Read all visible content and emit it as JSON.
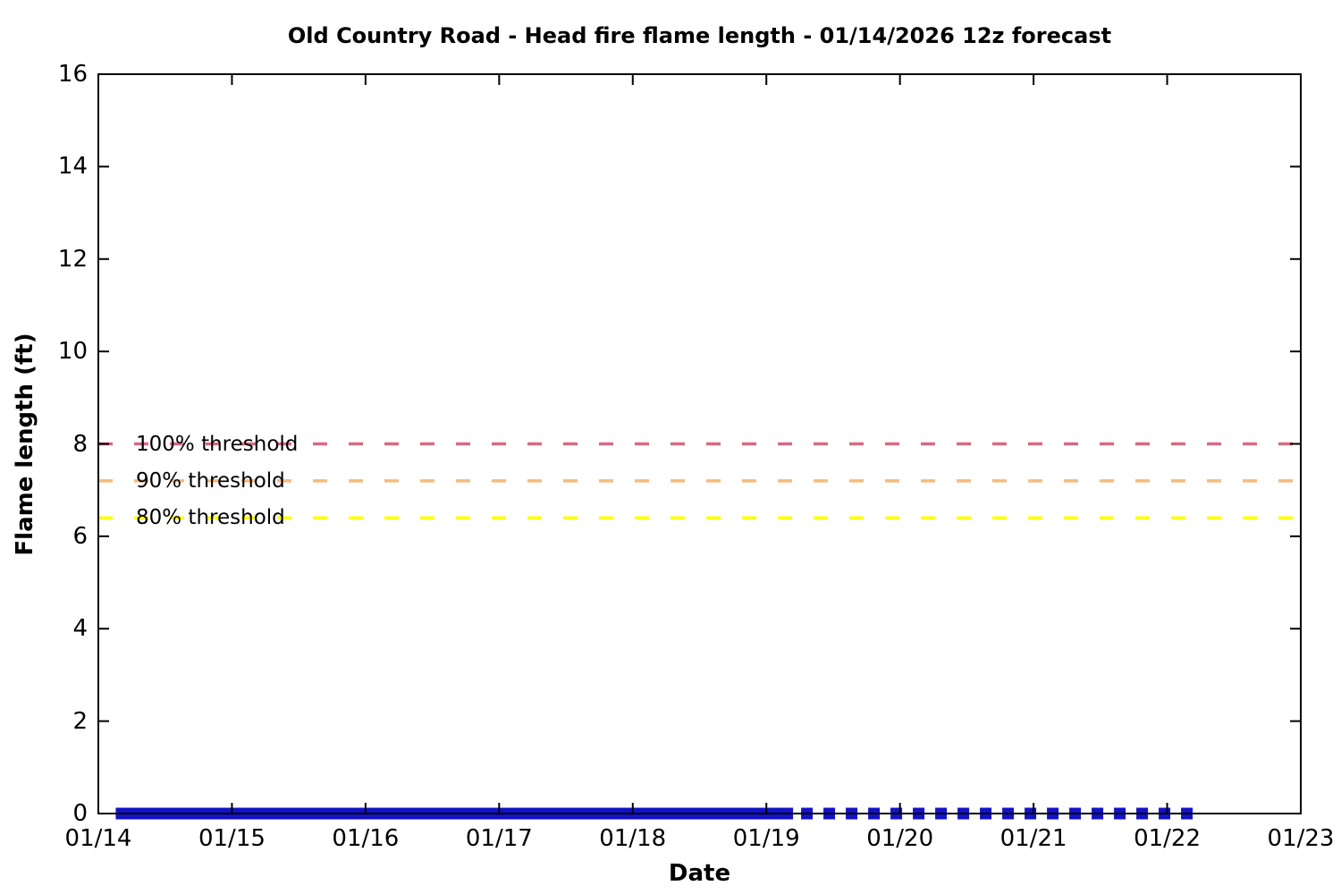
{
  "page": {
    "background_color": "#ffffff",
    "axis_color": "#000000",
    "text_color": "#000000"
  },
  "chart_data": {
    "type": "line",
    "title": "Old Country Road - Head fire flame length - 01/14/2026 12z forecast",
    "xlabel": "Date",
    "ylabel": "Flame length (ft)",
    "grid": false,
    "legend_position": "none",
    "x_axis": {
      "tick_labels": [
        "01/14",
        "01/15",
        "01/16",
        "01/17",
        "01/18",
        "01/19",
        "01/20",
        "01/21",
        "01/22",
        "01/23"
      ],
      "range_days": [
        0,
        9
      ],
      "origin_date": "01/14"
    },
    "y_axis": {
      "tick_labels": [
        "0",
        "2",
        "4",
        "6",
        "8",
        "10",
        "12",
        "14",
        "16"
      ],
      "ticks": [
        0,
        2,
        4,
        6,
        8,
        10,
        12,
        14,
        16
      ],
      "range": [
        0,
        16
      ]
    },
    "threshold_lines": [
      {
        "id": "threshold-100",
        "label": "100% threshold",
        "value": 8.0,
        "color": "#d66a82",
        "style": "dashed"
      },
      {
        "id": "threshold-90",
        "label": "90% threshold",
        "value": 7.2,
        "color": "#f6bb7d",
        "style": "dashed"
      },
      {
        "id": "threshold-80",
        "label": "80% threshold",
        "value": 6.4,
        "color": "#ffff00",
        "style": "dashed"
      }
    ],
    "series": [
      {
        "id": "flame-length-solid",
        "style": "solid",
        "color": "#1212c6",
        "value": 0,
        "x_start_days": 0.13,
        "x_end_days": 5.2,
        "x_start_reading": "01/14 ~03:00",
        "x_end_reading": "01/19 ~05:00"
      },
      {
        "id": "flame-length-dotted",
        "style": "dotted",
        "color": "#1212c6",
        "value": 0,
        "x_start_days": 5.26,
        "x_end_days": 8.2,
        "x_start_reading": "01/19 ~06:00",
        "x_end_reading": "01/22 ~05:00"
      }
    ]
  }
}
